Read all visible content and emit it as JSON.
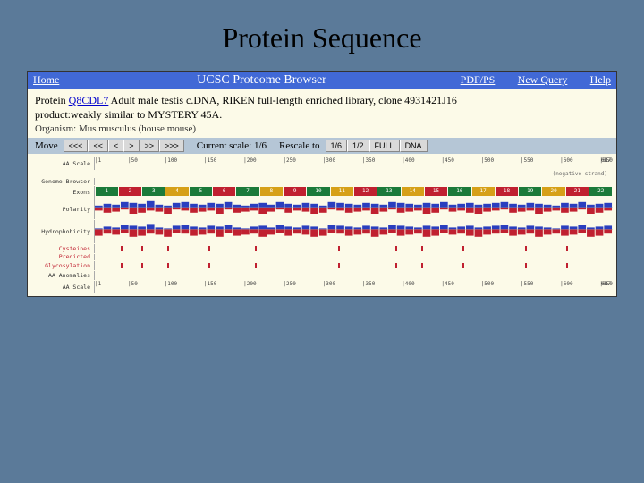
{
  "slide": {
    "title": "Protein Sequence"
  },
  "header": {
    "home": "Home",
    "title": "UCSC Proteome Browser",
    "pdf": "PDF/PS",
    "newquery": "New Query",
    "help": "Help"
  },
  "protein": {
    "prefix": "Protein ",
    "accession": "Q8CDL7",
    "desc_line1": " Adult male testis c.DNA, RIKEN full-length enriched library, clone 4931421J16",
    "desc_line2": "product:weakly similar to MYSTERY 45A.",
    "organism_label": "Organism: ",
    "organism": "Mus musculus (house mouse)"
  },
  "nav": {
    "move_label": "Move",
    "btns_left": [
      "<<<",
      "<<",
      "<",
      ">",
      ">>",
      ">>>"
    ],
    "scale_label": "Current scale: 1/6",
    "rescale_label": "Rescale to",
    "rescale_btns": [
      "1/6",
      "1/2",
      "FULL",
      "DNA"
    ]
  },
  "tracks": {
    "aa_scale_label": "AA Scale",
    "scale_ticks": [
      "|1",
      "|50",
      "|100",
      "|150",
      "|200",
      "|250",
      "|300",
      "|350",
      "|400",
      "|450",
      "|500",
      "|550",
      "|600",
      "|650"
    ],
    "scale_end": "687",
    "neg_strand": "(negative strand)",
    "genome_label": "Genome Browser",
    "exons_label": "Exons",
    "exons": [
      {
        "n": "1",
        "c": "#1b7a3a"
      },
      {
        "n": "2",
        "c": "#c02030"
      },
      {
        "n": "3",
        "c": "#1b7a3a"
      },
      {
        "n": "4",
        "c": "#d6a018"
      },
      {
        "n": "5",
        "c": "#1b7a3a"
      },
      {
        "n": "6",
        "c": "#c02030"
      },
      {
        "n": "7",
        "c": "#1b7a3a"
      },
      {
        "n": "8",
        "c": "#d6a018"
      },
      {
        "n": "9",
        "c": "#c02030"
      },
      {
        "n": "10",
        "c": "#1b7a3a"
      },
      {
        "n": "11",
        "c": "#d6a018"
      },
      {
        "n": "12",
        "c": "#c02030"
      },
      {
        "n": "13",
        "c": "#1b7a3a"
      },
      {
        "n": "14",
        "c": "#d6a018"
      },
      {
        "n": "15",
        "c": "#c02030"
      },
      {
        "n": "16",
        "c": "#1b7a3a"
      },
      {
        "n": "17",
        "c": "#d6a018"
      },
      {
        "n": "18",
        "c": "#c02030"
      },
      {
        "n": "19",
        "c": "#1b7a3a"
      },
      {
        "n": "20",
        "c": "#d6a018"
      },
      {
        "n": "21",
        "c": "#c02030"
      },
      {
        "n": "22",
        "c": "#1b7a3a"
      }
    ],
    "polarity_label": "Polarity",
    "polarity_blue": [
      2,
      4,
      3,
      6,
      5,
      4,
      7,
      3,
      2,
      5,
      6,
      4,
      3,
      5,
      4,
      6,
      3,
      2,
      4,
      5,
      3,
      6,
      4,
      3,
      5,
      4,
      2,
      6,
      5,
      4,
      3,
      5,
      4,
      3,
      6,
      5,
      4,
      3,
      5,
      4,
      6,
      3,
      4,
      5,
      3,
      4,
      5,
      6,
      4,
      3,
      5,
      4,
      3,
      2,
      5,
      4,
      6,
      3,
      4,
      5
    ],
    "polarity_red": [
      3,
      5,
      4,
      2,
      6,
      5,
      3,
      4,
      6,
      2,
      3,
      5,
      4,
      3,
      6,
      2,
      5,
      4,
      3,
      6,
      4,
      2,
      5,
      3,
      4,
      6,
      5,
      2,
      3,
      5,
      4,
      3,
      6,
      4,
      2,
      5,
      4,
      3,
      6,
      5,
      2,
      4,
      3,
      5,
      6,
      4,
      3,
      2,
      5,
      4,
      3,
      6,
      4,
      3,
      5,
      4,
      2,
      6,
      5,
      3
    ],
    "polarity_colors": {
      "blue": "#2a3fbf",
      "red": "#c02030"
    },
    "hydro_label": "Hydrophobicity",
    "hydro_blue": [
      1,
      3,
      2,
      5,
      4,
      3,
      6,
      2,
      1,
      4,
      5,
      3,
      2,
      4,
      3,
      5,
      2,
      1,
      3,
      4,
      2,
      5,
      3,
      2,
      4,
      3,
      1,
      5,
      4,
      3,
      2,
      4,
      3,
      2,
      5,
      4,
      3,
      2,
      4,
      3,
      5,
      2,
      3,
      4,
      2,
      3,
      4,
      5,
      3,
      2,
      4,
      3,
      2,
      1,
      4,
      3,
      5,
      2,
      3,
      4
    ],
    "hydro_red": [
      6,
      4,
      5,
      3,
      7,
      6,
      4,
      5,
      7,
      3,
      4,
      6,
      5,
      4,
      7,
      3,
      6,
      5,
      4,
      7,
      5,
      3,
      6,
      4,
      5,
      7,
      6,
      3,
      4,
      6,
      5,
      4,
      7,
      5,
      3,
      6,
      5,
      4,
      7,
      6,
      3,
      5,
      4,
      6,
      7,
      5,
      4,
      3,
      6,
      5,
      4,
      7,
      5,
      4,
      6,
      5,
      3,
      7,
      6,
      4
    ],
    "hydro_colors": {
      "blue": "#2a3fbf",
      "red": "#c02030"
    },
    "cys_label": "Cysteines",
    "pred_label": "Predicted",
    "glyc_label": "Glycosylation",
    "cys_positions_pct": [
      5,
      9,
      14,
      22,
      31,
      47,
      58,
      63,
      71,
      83,
      91
    ],
    "cys_color": "#c02030",
    "anomalies_label": "AA Anomalies",
    "bottom_scale_label": "AA Scale"
  }
}
